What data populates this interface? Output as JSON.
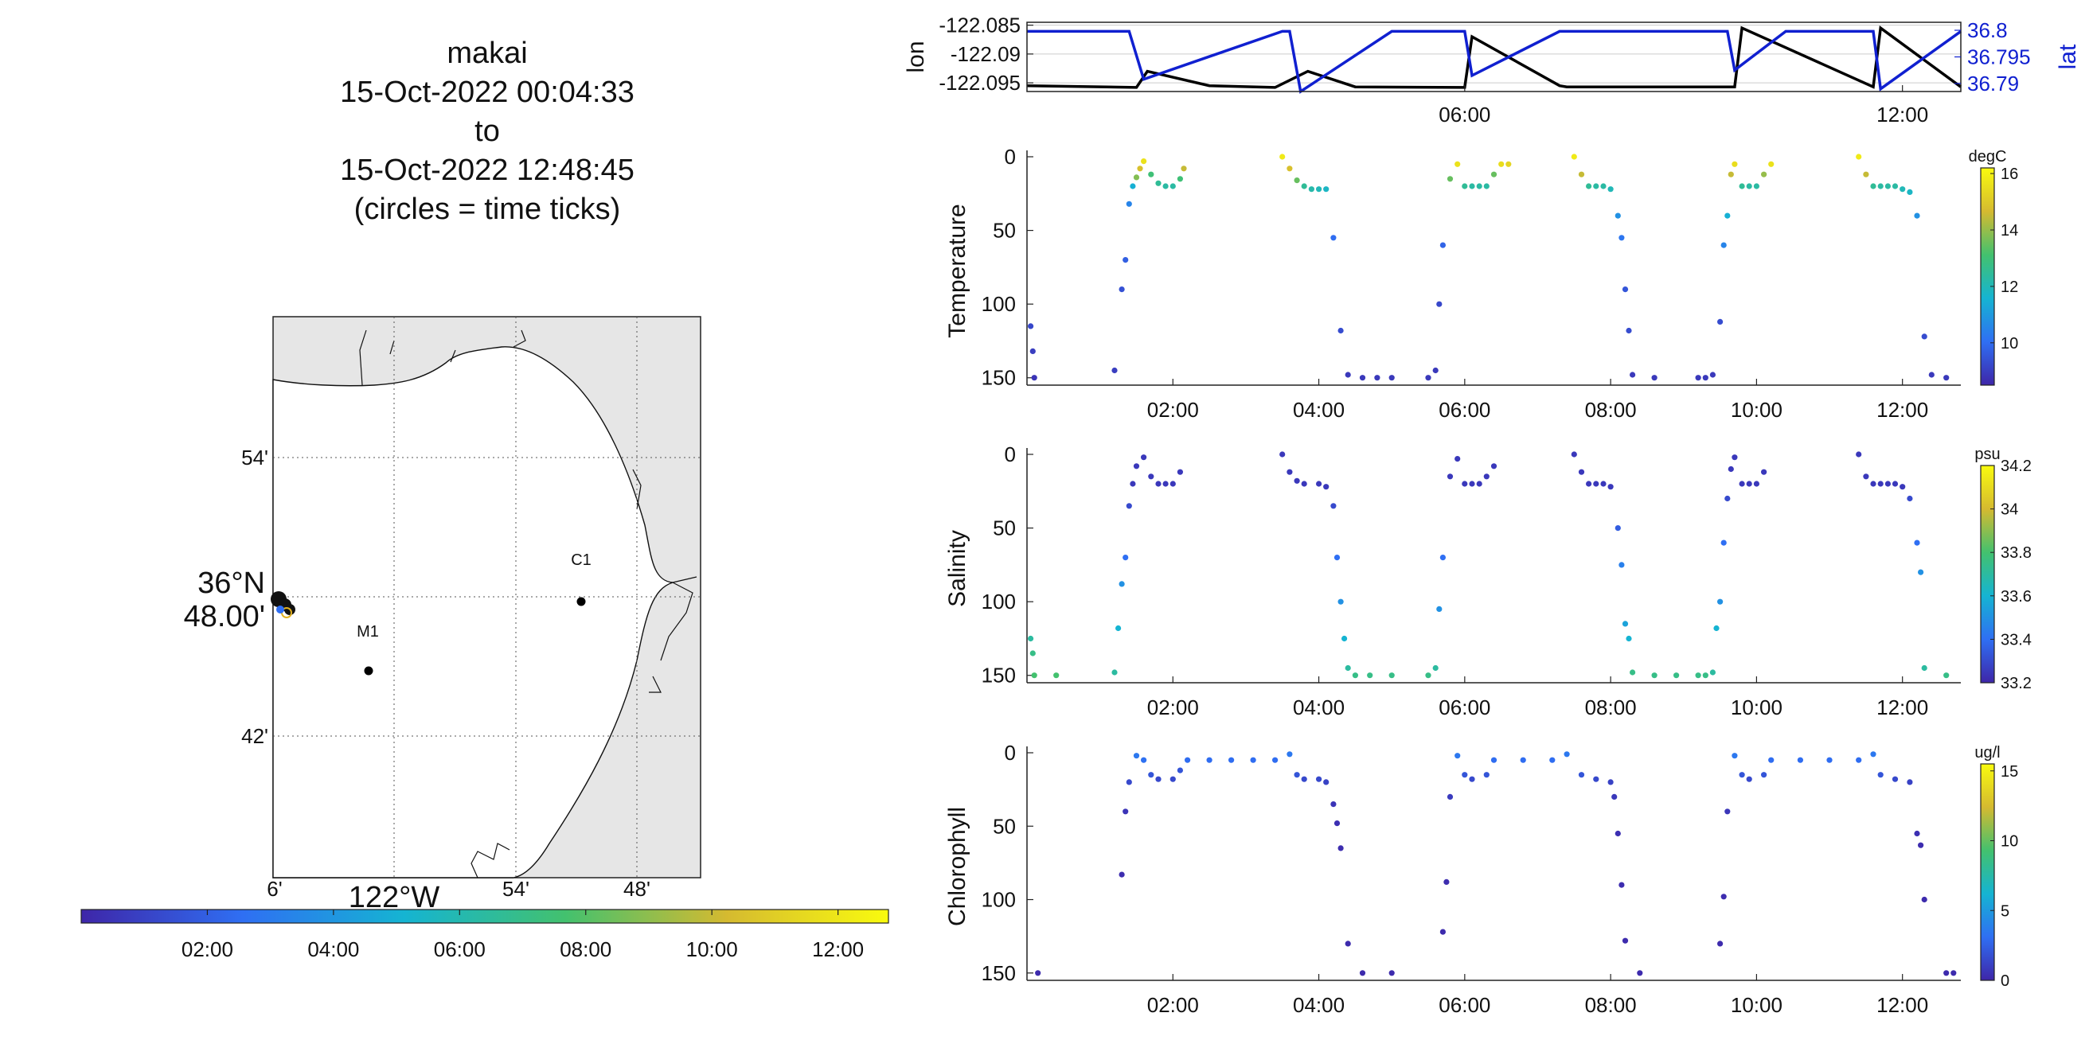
{
  "title": {
    "lines": [
      "makai",
      "15-Oct-2022 00:04:33",
      "to",
      "15-Oct-2022 12:48:45",
      "(circles = time ticks)"
    ]
  },
  "map": {
    "lat_ticks": [
      "54'",
      "36°N",
      "48.00'",
      "42'"
    ],
    "lon_ticks": [
      "6'",
      "54'",
      "48'"
    ],
    "lon_label": "122°W",
    "stations": [
      {
        "name": "M1"
      },
      {
        "name": "C1"
      }
    ]
  },
  "time_colorbar": {
    "ticks": [
      "02:00",
      "04:00",
      "06:00",
      "08:00",
      "10:00",
      "12:00"
    ],
    "colors": [
      "#3e26a8",
      "#2f6ff3",
      "#15b4d2",
      "#43c16e",
      "#d5ba30",
      "#f9fb0e"
    ]
  },
  "chart_data": [
    {
      "type": "line",
      "panel": "position",
      "x_unit": "hours since 15-Oct-2022 00:00",
      "xlim": [
        0,
        12.8
      ],
      "x_ticks": [
        {
          "value": 6,
          "label": "06:00"
        },
        {
          "value": 12,
          "label": "12:00"
        }
      ],
      "ylabel": "lon",
      "ylabel_right": "lat",
      "ylim": [
        -122.0965,
        -122.0845
      ],
      "yticks": [
        "-122.085",
        "-122.09",
        "-122.095"
      ],
      "y2lim": [
        36.7885,
        36.8015
      ],
      "y2ticks": [
        "36.8",
        "36.795",
        "36.79"
      ],
      "series": [
        {
          "color": "#000000",
          "axis": "left",
          "x": [
            0,
            1.5,
            1.65,
            2.5,
            3.4,
            3.85,
            4.5,
            6.0,
            6.1,
            7.3,
            7.4,
            9.7,
            9.8,
            11.6,
            11.7,
            12.8
          ],
          "y": [
            -122.0955,
            -122.0958,
            -122.093,
            -122.0955,
            -122.0958,
            -122.093,
            -122.0957,
            -122.0958,
            -122.087,
            -122.0955,
            -122.0957,
            -122.0957,
            -122.0855,
            -122.0957,
            -122.0855,
            -122.0957
          ]
        },
        {
          "color": "#1020d0",
          "axis": "right",
          "x": [
            0,
            1.4,
            1.6,
            3.5,
            3.6,
            3.75,
            5.0,
            6.0,
            6.1,
            7.3,
            7.4,
            9.6,
            9.7,
            10.4,
            11.6,
            11.7,
            12.8
          ],
          "y": [
            36.7998,
            36.7998,
            36.7908,
            36.7998,
            36.7998,
            36.7885,
            36.7998,
            36.7998,
            36.7915,
            36.7998,
            36.7998,
            36.7998,
            36.7925,
            36.7998,
            36.7998,
            36.789,
            36.7998
          ]
        }
      ]
    },
    {
      "type": "scatter",
      "panel": "temperature",
      "ylabel": "Temperature",
      "units": "degC",
      "xlim": [
        0,
        12.8
      ],
      "ylim": [
        0,
        155
      ],
      "y_reversed": true,
      "yticks": [
        0,
        50,
        100,
        150
      ],
      "x_ticks": [
        "02:00",
        "04:00",
        "06:00",
        "08:00",
        "10:00",
        "12:00"
      ],
      "clim": [
        8.5,
        16.2
      ],
      "cticks": [
        10,
        12,
        14,
        16
      ],
      "points": [
        [
          0.05,
          115,
          9.2
        ],
        [
          0.08,
          132,
          9.0
        ],
        [
          0.1,
          150,
          8.8
        ],
        [
          1.2,
          145,
          9.0
        ],
        [
          1.3,
          90,
          9.4
        ],
        [
          1.35,
          70,
          9.7
        ],
        [
          1.4,
          32,
          10.5
        ],
        [
          1.45,
          20,
          11.5
        ],
        [
          1.5,
          14,
          13.8
        ],
        [
          1.55,
          8,
          14.8
        ],
        [
          1.6,
          3,
          15.6
        ],
        [
          1.7,
          12,
          13.0
        ],
        [
          1.8,
          18,
          12.5
        ],
        [
          1.9,
          20,
          12.3
        ],
        [
          2.0,
          20,
          12.3
        ],
        [
          2.1,
          15,
          13.0
        ],
        [
          2.15,
          8,
          14.5
        ],
        [
          3.5,
          0,
          15.8
        ],
        [
          3.6,
          8,
          14.8
        ],
        [
          3.7,
          16,
          13.5
        ],
        [
          3.8,
          20,
          12.5
        ],
        [
          3.9,
          22,
          12.2
        ],
        [
          4.0,
          22,
          12.0
        ],
        [
          4.1,
          22,
          11.8
        ],
        [
          4.2,
          55,
          10.0
        ],
        [
          4.3,
          118,
          9.3
        ],
        [
          4.4,
          148,
          8.9
        ],
        [
          4.6,
          150,
          8.9
        ],
        [
          4.8,
          150,
          8.9
        ],
        [
          5.0,
          150,
          8.9
        ],
        [
          5.5,
          150,
          8.9
        ],
        [
          5.6,
          145,
          8.9
        ],
        [
          5.65,
          100,
          9.2
        ],
        [
          5.7,
          60,
          9.8
        ],
        [
          5.8,
          15,
          13.5
        ],
        [
          5.9,
          5,
          15.6
        ],
        [
          6.0,
          20,
          12.5
        ],
        [
          6.1,
          20,
          12.3
        ],
        [
          6.2,
          20,
          12.3
        ],
        [
          6.3,
          20,
          12.3
        ],
        [
          6.4,
          12,
          13.5
        ],
        [
          6.5,
          5,
          15.5
        ],
        [
          6.6,
          5,
          15.3
        ],
        [
          7.5,
          0,
          15.8
        ],
        [
          7.6,
          12,
          14.5
        ],
        [
          7.7,
          20,
          12.5
        ],
        [
          7.8,
          20,
          12.3
        ],
        [
          7.9,
          20,
          12.3
        ],
        [
          8.0,
          22,
          12.0
        ],
        [
          8.1,
          40,
          10.8
        ],
        [
          8.15,
          55,
          10.2
        ],
        [
          8.2,
          90,
          9.5
        ],
        [
          8.25,
          118,
          9.3
        ],
        [
          8.3,
          148,
          8.9
        ],
        [
          8.6,
          150,
          8.9
        ],
        [
          9.2,
          150,
          8.9
        ],
        [
          9.3,
          150,
          8.9
        ],
        [
          9.4,
          148,
          8.9
        ],
        [
          9.5,
          112,
          9.3
        ],
        [
          9.55,
          60,
          10.5
        ],
        [
          9.6,
          40,
          11.5
        ],
        [
          9.65,
          12,
          14.5
        ],
        [
          9.7,
          5,
          15.5
        ],
        [
          9.8,
          20,
          12.5
        ],
        [
          9.9,
          20,
          12.3
        ],
        [
          10.0,
          20,
          12.3
        ],
        [
          10.1,
          12,
          14.0
        ],
        [
          10.2,
          5,
          15.6
        ],
        [
          11.4,
          0,
          15.8
        ],
        [
          11.5,
          12,
          14.5
        ],
        [
          11.6,
          20,
          12.5
        ],
        [
          11.7,
          20,
          12.3
        ],
        [
          11.8,
          20,
          12.3
        ],
        [
          11.9,
          20,
          12.3
        ],
        [
          12.0,
          22,
          12.0
        ],
        [
          12.1,
          24,
          11.8
        ],
        [
          12.2,
          40,
          10.8
        ],
        [
          12.3,
          122,
          9.3
        ],
        [
          12.4,
          148,
          8.9
        ],
        [
          12.6,
          150,
          8.9
        ]
      ]
    },
    {
      "type": "scatter",
      "panel": "salinity",
      "ylabel": "Salinity",
      "units": "psu",
      "xlim": [
        0,
        12.8
      ],
      "ylim": [
        0,
        155
      ],
      "y_reversed": true,
      "yticks": [
        0,
        50,
        100,
        150
      ],
      "x_ticks": [
        "02:00",
        "04:00",
        "06:00",
        "08:00",
        "10:00",
        "12:00"
      ],
      "clim": [
        33.2,
        34.2
      ],
      "cticks": [
        33.2,
        33.4,
        33.6,
        33.8,
        34,
        34.2
      ],
      "points": [
        [
          0.05,
          125,
          33.7
        ],
        [
          0.08,
          135,
          33.75
        ],
        [
          0.1,
          150,
          33.8
        ],
        [
          0.4,
          150,
          33.8
        ],
        [
          1.2,
          148,
          33.7
        ],
        [
          1.25,
          118,
          33.6
        ],
        [
          1.3,
          88,
          33.5
        ],
        [
          1.35,
          70,
          33.4
        ],
        [
          1.4,
          35,
          33.3
        ],
        [
          1.45,
          20,
          33.25
        ],
        [
          1.5,
          8,
          33.25
        ],
        [
          1.6,
          2,
          33.25
        ],
        [
          1.7,
          15,
          33.25
        ],
        [
          1.8,
          20,
          33.25
        ],
        [
          1.9,
          20,
          33.25
        ],
        [
          2.0,
          20,
          33.25
        ],
        [
          2.1,
          12,
          33.25
        ],
        [
          3.5,
          0,
          33.25
        ],
        [
          3.6,
          12,
          33.25
        ],
        [
          3.7,
          18,
          33.25
        ],
        [
          3.8,
          20,
          33.25
        ],
        [
          4.0,
          20,
          33.25
        ],
        [
          4.1,
          22,
          33.25
        ],
        [
          4.2,
          35,
          33.3
        ],
        [
          4.25,
          70,
          33.4
        ],
        [
          4.3,
          100,
          33.5
        ],
        [
          4.35,
          125,
          33.6
        ],
        [
          4.4,
          145,
          33.7
        ],
        [
          4.5,
          150,
          33.75
        ],
        [
          4.7,
          150,
          33.75
        ],
        [
          5.0,
          150,
          33.75
        ],
        [
          5.5,
          150,
          33.75
        ],
        [
          5.6,
          145,
          33.7
        ],
        [
          5.65,
          105,
          33.5
        ],
        [
          5.7,
          70,
          33.4
        ],
        [
          5.8,
          15,
          33.25
        ],
        [
          5.9,
          3,
          33.25
        ],
        [
          6.0,
          20,
          33.25
        ],
        [
          6.1,
          20,
          33.25
        ],
        [
          6.2,
          20,
          33.25
        ],
        [
          6.3,
          15,
          33.25
        ],
        [
          6.4,
          8,
          33.25
        ],
        [
          7.5,
          0,
          33.25
        ],
        [
          7.6,
          12,
          33.25
        ],
        [
          7.7,
          20,
          33.25
        ],
        [
          7.8,
          20,
          33.25
        ],
        [
          7.9,
          20,
          33.25
        ],
        [
          8.0,
          22,
          33.25
        ],
        [
          8.1,
          50,
          33.35
        ],
        [
          8.15,
          75,
          33.45
        ],
        [
          8.2,
          115,
          33.55
        ],
        [
          8.25,
          125,
          33.6
        ],
        [
          8.3,
          148,
          33.75
        ],
        [
          8.6,
          150,
          33.75
        ],
        [
          8.9,
          150,
          33.75
        ],
        [
          9.2,
          150,
          33.75
        ],
        [
          9.3,
          150,
          33.75
        ],
        [
          9.4,
          148,
          33.7
        ],
        [
          9.45,
          118,
          33.6
        ],
        [
          9.5,
          100,
          33.5
        ],
        [
          9.55,
          60,
          33.4
        ],
        [
          9.6,
          30,
          33.3
        ],
        [
          9.65,
          10,
          33.25
        ],
        [
          9.7,
          2,
          33.25
        ],
        [
          9.8,
          20,
          33.25
        ],
        [
          9.9,
          20,
          33.25
        ],
        [
          10.0,
          20,
          33.25
        ],
        [
          10.1,
          12,
          33.25
        ],
        [
          11.4,
          0,
          33.25
        ],
        [
          11.5,
          15,
          33.25
        ],
        [
          11.6,
          20,
          33.25
        ],
        [
          11.7,
          20,
          33.25
        ],
        [
          11.8,
          20,
          33.25
        ],
        [
          11.9,
          20,
          33.25
        ],
        [
          12.0,
          22,
          33.25
        ],
        [
          12.1,
          30,
          33.3
        ],
        [
          12.2,
          60,
          33.4
        ],
        [
          12.25,
          80,
          33.5
        ],
        [
          12.3,
          145,
          33.7
        ],
        [
          12.6,
          150,
          33.75
        ]
      ]
    },
    {
      "type": "scatter",
      "panel": "chlorophyll",
      "ylabel": "Chlorophyll",
      "units": "ug/l",
      "xlim": [
        0,
        12.8
      ],
      "ylim": [
        0,
        155
      ],
      "y_reversed": true,
      "yticks": [
        0,
        50,
        100,
        150
      ],
      "x_ticks": [
        "02:00",
        "04:00",
        "06:00",
        "08:00",
        "10:00",
        "12:00"
      ],
      "clim": [
        0,
        15.5
      ],
      "cticks": [
        0,
        5,
        10,
        15
      ],
      "points": [
        [
          0.15,
          150,
          0.2
        ],
        [
          1.3,
          83,
          0.3
        ],
        [
          1.35,
          40,
          0.6
        ],
        [
          1.4,
          20,
          1.5
        ],
        [
          1.5,
          2,
          3.5
        ],
        [
          1.6,
          5,
          3.2
        ],
        [
          1.7,
          15,
          2.0
        ],
        [
          1.8,
          18,
          1.5
        ],
        [
          2.0,
          18,
          1.5
        ],
        [
          2.1,
          12,
          2.0
        ],
        [
          2.2,
          5,
          3.0
        ],
        [
          2.5,
          5,
          3.0
        ],
        [
          2.8,
          5,
          3.0
        ],
        [
          3.1,
          5,
          3.0
        ],
        [
          3.4,
          5,
          3.0
        ],
        [
          3.6,
          1,
          3.5
        ],
        [
          3.7,
          15,
          2.0
        ],
        [
          3.8,
          18,
          1.5
        ],
        [
          4.0,
          18,
          1.5
        ],
        [
          4.1,
          20,
          1.2
        ],
        [
          4.2,
          35,
          0.6
        ],
        [
          4.25,
          48,
          0.4
        ],
        [
          4.3,
          65,
          0.3
        ],
        [
          4.4,
          130,
          0.2
        ],
        [
          4.6,
          150,
          0.2
        ],
        [
          5.0,
          150,
          0.2
        ],
        [
          5.7,
          122,
          0.2
        ],
        [
          5.75,
          88,
          0.3
        ],
        [
          5.8,
          30,
          0.9
        ],
        [
          5.9,
          2,
          3.5
        ],
        [
          6.0,
          15,
          2.0
        ],
        [
          6.1,
          18,
          1.5
        ],
        [
          6.3,
          15,
          2.0
        ],
        [
          6.4,
          5,
          3.0
        ],
        [
          6.8,
          5,
          3.0
        ],
        [
          7.2,
          5,
          3.0
        ],
        [
          7.4,
          1,
          3.5
        ],
        [
          7.6,
          15,
          2.0
        ],
        [
          7.8,
          18,
          1.5
        ],
        [
          8.0,
          20,
          1.2
        ],
        [
          8.05,
          30,
          0.8
        ],
        [
          8.1,
          55,
          0.4
        ],
        [
          8.15,
          90,
          0.3
        ],
        [
          8.2,
          128,
          0.2
        ],
        [
          8.4,
          150,
          0.2
        ],
        [
          9.5,
          130,
          0.2
        ],
        [
          9.55,
          98,
          0.3
        ],
        [
          9.6,
          40,
          0.7
        ],
        [
          9.7,
          2,
          3.5
        ],
        [
          9.8,
          15,
          2.0
        ],
        [
          9.9,
          18,
          1.5
        ],
        [
          10.1,
          15,
          2.0
        ],
        [
          10.2,
          5,
          3.0
        ],
        [
          10.6,
          5,
          3.0
        ],
        [
          11.0,
          5,
          3.0
        ],
        [
          11.4,
          5,
          3.0
        ],
        [
          11.6,
          1,
          3.5
        ],
        [
          11.7,
          15,
          2.0
        ],
        [
          11.9,
          18,
          1.5
        ],
        [
          12.1,
          20,
          1.2
        ],
        [
          12.2,
          55,
          0.4
        ],
        [
          12.25,
          63,
          0.3
        ],
        [
          12.3,
          100,
          0.2
        ],
        [
          12.6,
          150,
          0.2
        ],
        [
          12.7,
          150,
          0.2
        ]
      ]
    }
  ]
}
